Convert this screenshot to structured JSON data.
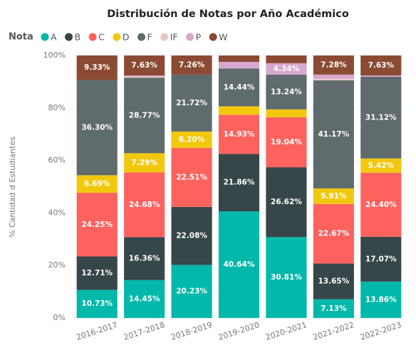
{
  "chart_data": {
    "type": "stacked_bar_100",
    "title": "Distribución de Notas por Año Académico",
    "y_label": "% Cantidad d Estudiantes",
    "legend_title": "Nota",
    "categories": [
      "2016-2017",
      "2017-2018",
      "2018-2019",
      "2019-2020",
      "2020-2021",
      "2021-2022",
      "2022-2023"
    ],
    "series": [
      {
        "name": "A",
        "color": "#01B8AA",
        "values": [
          10.73,
          14.45,
          20.23,
          40.64,
          30.81,
          7.13,
          13.86
        ],
        "value_labels": [
          "10.73%",
          "14.45%",
          "20.23%",
          "40.64%",
          "30.81%",
          "7.13%",
          "13.86%"
        ]
      },
      {
        "name": "B",
        "color": "#374649",
        "values": [
          12.71,
          16.36,
          22.08,
          21.86,
          26.62,
          13.65,
          17.07
        ],
        "value_labels": [
          "12.71%",
          "16.36%",
          "22.08%",
          "21.86%",
          "26.62%",
          "13.65%",
          "17.07%"
        ]
      },
      {
        "name": "C",
        "color": "#FD625E",
        "values": [
          24.25,
          24.68,
          22.51,
          14.93,
          19.04,
          22.67,
          24.4
        ],
        "value_labels": [
          "24.25%",
          "24.68%",
          "22.51%",
          "14.93%",
          "19.04%",
          "22.67%",
          "24.40%"
        ]
      },
      {
        "name": "D",
        "color": "#F2C80F",
        "values": [
          6.69,
          7.29,
          6.2,
          3.2,
          3.0,
          5.91,
          5.42
        ],
        "value_labels": [
          "6.69%",
          "7.29%",
          "6.20%",
          null,
          null,
          "5.91%",
          "5.42%"
        ]
      },
      {
        "name": "F",
        "color": "#5F6B6D",
        "values": [
          36.3,
          28.77,
          21.72,
          14.44,
          13.24,
          41.17,
          31.12
        ],
        "value_labels": [
          "36.30%",
          "28.77%",
          "21.72%",
          "14.44%",
          "13.24%",
          "41.17%",
          "31.12%"
        ]
      },
      {
        "name": "IF",
        "color": "#E8C8C4",
        "values": [
          0,
          0.4,
          0,
          0,
          0,
          0.6,
          0
        ],
        "value_labels": [
          null,
          null,
          null,
          null,
          null,
          null,
          null
        ]
      },
      {
        "name": "P",
        "color": "#D7A8CF",
        "values": [
          0,
          0.42,
          0,
          2.5,
          4.34,
          1.59,
          0.5
        ],
        "value_labels": [
          null,
          null,
          null,
          null,
          "4.34%",
          null,
          null
        ]
      },
      {
        "name": "W",
        "color": "#8B4B33",
        "values": [
          9.33,
          7.63,
          7.26,
          2.43,
          2.95,
          7.28,
          7.63
        ],
        "value_labels": [
          "9.33%",
          "7.63%",
          "7.26%",
          null,
          null,
          "7.28%",
          "7.63%"
        ]
      }
    ],
    "ylim": [
      0,
      100
    ],
    "yticks": [
      {
        "value": 0,
        "label": "0%"
      },
      {
        "value": 20,
        "label": "20%"
      },
      {
        "value": 40,
        "label": "40%"
      },
      {
        "value": 60,
        "label": "60%"
      },
      {
        "value": 80,
        "label": "80%"
      },
      {
        "value": 100,
        "label": "100%"
      }
    ],
    "grid": true
  }
}
